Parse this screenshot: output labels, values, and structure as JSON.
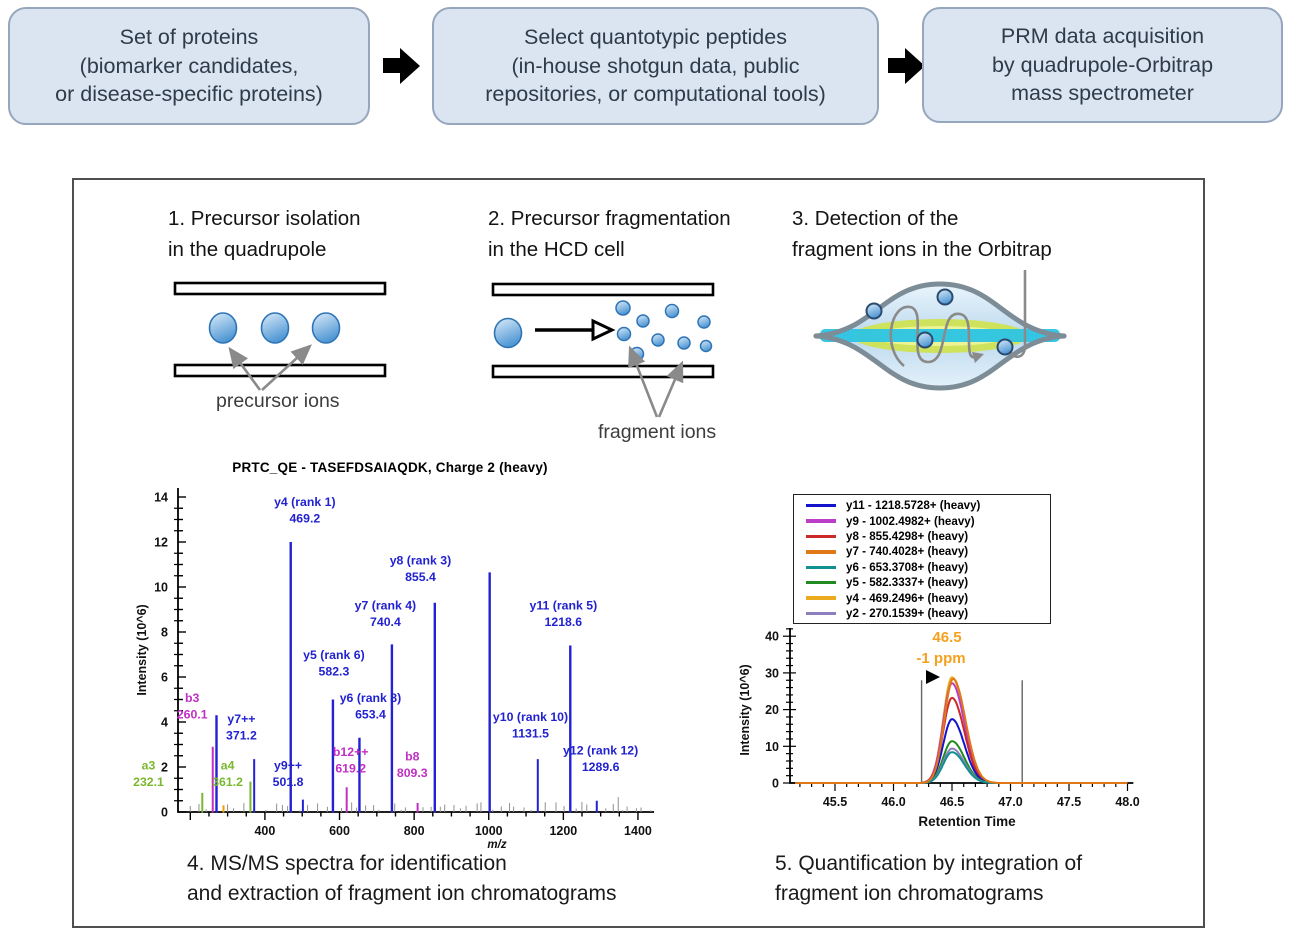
{
  "workflow": {
    "boxes": [
      {
        "lines": [
          "Set of proteins",
          "(biomarker candidates,",
          "or disease-specific proteins)"
        ]
      },
      {
        "lines": [
          "Select quantotypic peptides",
          "(in-house shotgun data, public",
          "repositories, or computational tools)"
        ]
      },
      {
        "lines": [
          "PRM data acquisition",
          "by quadrupole-Orbitrap",
          "mass spectrometer"
        ]
      }
    ],
    "box_fill": "#dbe5f1",
    "box_border": "#96a6bd",
    "arrow_color": "#000000"
  },
  "panel": {
    "steps": [
      {
        "lines": [
          "1. Precursor isolation",
          "in the quadrupole"
        ]
      },
      {
        "lines": [
          "2. Precursor fragmentation",
          "in the HCD cell"
        ]
      },
      {
        "lines": [
          "3. Detection of the",
          "fragment ions in the Orbitrap"
        ]
      }
    ],
    "labels": {
      "precursor": "precursor ions",
      "fragment": "fragment ions"
    },
    "captions": [
      {
        "lines": [
          "4. MS/MS spectra for identification",
          "and extraction of fragment ion chromatograms"
        ]
      },
      {
        "lines": [
          "5. Quantification by integration of",
          "fragment ion chromatograms"
        ]
      }
    ]
  },
  "chart_data": [
    {
      "type": "bar",
      "title": "PRTC_QE - TASEFDSAIAQDK, Charge 2 (heavy)",
      "xlabel": "m/z",
      "ylabel": "Intensity (10^6)",
      "xlim": [
        167,
        1443
      ],
      "ylim": [
        0,
        14
      ],
      "xticks": [
        400,
        600,
        800,
        1000,
        1200,
        1400
      ],
      "yticks": [
        0,
        2,
        4,
        6,
        8,
        10,
        12,
        14
      ],
      "grid": false,
      "colors": {
        "blue": "#2222d2",
        "magenta": "#c12fc4",
        "green": "#7cb82f",
        "orange": "#f0a000",
        "noise": "#909090"
      },
      "noise_seed": 42,
      "peaks": [
        {
          "mz": 232.1,
          "h": 0.85,
          "c": "green",
          "label": [
            "a3",
            "232.1"
          ],
          "lx": 88,
          "ly": 1.9
        },
        {
          "mz": 260.1,
          "h": 2.9,
          "c": "magenta",
          "label": [
            "b3",
            "260.1"
          ],
          "lx": 205,
          "ly": 4.9
        },
        {
          "mz": 270.2,
          "h": 4.3,
          "c": "blue"
        },
        {
          "mz": 289.0,
          "h": 0.3,
          "c": "orange"
        },
        {
          "mz": 361.2,
          "h": 1.35,
          "c": "green",
          "label": [
            "a4",
            "361.2"
          ],
          "lx": 300,
          "ly": 1.9
        },
        {
          "mz": 371.2,
          "h": 2.35,
          "c": "blue",
          "label": [
            "y7++",
            "371.2"
          ],
          "lx": 337,
          "ly": 3.95
        },
        {
          "mz": 469.2,
          "h": 12.0,
          "c": "blue",
          "label": [
            "y4 (rank 1)",
            "469.2"
          ],
          "lx": 507,
          "ly": 13.6
        },
        {
          "mz": 501.8,
          "h": 0.55,
          "c": "blue",
          "label": [
            "y9++",
            "501.8"
          ],
          "lx": 462,
          "ly": 1.9
        },
        {
          "mz": 582.3,
          "h": 5.0,
          "c": "blue",
          "label": [
            "y5 (rank 6)",
            "582.3"
          ],
          "lx": 585,
          "ly": 6.8
        },
        {
          "mz": 619.2,
          "h": 1.1,
          "c": "magenta",
          "label": [
            "b12++",
            "619.2"
          ],
          "lx": 630,
          "ly": 2.5
        },
        {
          "mz": 653.4,
          "h": 3.3,
          "c": "blue",
          "label": [
            "y6 (rank 8)",
            "653.4"
          ],
          "lx": 683,
          "ly": 4.9
        },
        {
          "mz": 740.4,
          "h": 7.45,
          "c": "blue",
          "label": [
            "y7 (rank 4)",
            "740.4"
          ],
          "lx": 723,
          "ly": 9.0
        },
        {
          "mz": 809.3,
          "h": 0.4,
          "c": "magenta",
          "label": [
            "b8",
            "809.3"
          ],
          "lx": 795,
          "ly": 2.3
        },
        {
          "mz": 855.4,
          "h": 9.3,
          "c": "blue",
          "label": [
            "y8 (rank 3)",
            "855.4"
          ],
          "lx": 817,
          "ly": 11.0
        },
        {
          "mz": 1002.5,
          "h": 10.65,
          "c": "blue"
        },
        {
          "mz": 1131.5,
          "h": 2.35,
          "c": "blue",
          "label": [
            "y10 (rank 10)",
            "1131.5"
          ],
          "lx": 1112,
          "ly": 4.05
        },
        {
          "mz": 1218.6,
          "h": 7.4,
          "c": "blue",
          "label": [
            "y11 (rank 5)",
            "1218.6"
          ],
          "lx": 1200,
          "ly": 9.0
        },
        {
          "mz": 1289.6,
          "h": 0.5,
          "c": "blue",
          "label": [
            "y12 (rank 12)",
            "1289.6"
          ],
          "lx": 1300,
          "ly": 2.55
        }
      ]
    },
    {
      "type": "line",
      "xlabel": "Retention Time",
      "ylabel": "Intensity (10^6)",
      "xlim": [
        45.15,
        48.05
      ],
      "ylim": [
        0,
        42
      ],
      "xticks": [
        "45.5",
        "46.0",
        "46.5",
        "47.0",
        "47.5",
        "48.0"
      ],
      "yticks": [
        0,
        10,
        20,
        30,
        40
      ],
      "grid": false,
      "legend_position": "top",
      "legend": [
        {
          "label": "y11 - 1218.5728+ (heavy)",
          "color": "#1414cc"
        },
        {
          "label": "y9 - 1002.4982+ (heavy)",
          "color": "#bb3ec8"
        },
        {
          "label": "y8 - 855.4298+ (heavy)",
          "color": "#cc2929"
        },
        {
          "label": "y7 - 740.4028+ (heavy)",
          "color": "#e07818"
        },
        {
          "label": "y6 - 653.3708+ (heavy)",
          "color": "#109090"
        },
        {
          "label": "y5 - 582.3337+ (heavy)",
          "color": "#218a21"
        },
        {
          "label": "y4 - 469.2496+ (heavy)",
          "color": "#ecaa1e"
        },
        {
          "label": "y2 - 270.1539+ (heavy)",
          "color": "#8d7fc0"
        }
      ],
      "series": [
        {
          "name": "y4",
          "color": "#ecaa1e",
          "apex_rt": 46.5,
          "peak_height": 28.8
        },
        {
          "name": "y9",
          "color": "#bb3ec8",
          "apex_rt": 46.5,
          "peak_height": 27.2
        },
        {
          "name": "y8",
          "color": "#cc2929",
          "apex_rt": 46.5,
          "peak_height": 23.2
        },
        {
          "name": "y11",
          "color": "#1414cc",
          "apex_rt": 46.5,
          "peak_height": 17.4
        },
        {
          "name": "y5",
          "color": "#218a21",
          "apex_rt": 46.5,
          "peak_height": 11.4
        },
        {
          "name": "y2",
          "color": "#8d7fc0",
          "apex_rt": 46.5,
          "peak_height": 9.4
        },
        {
          "name": "y6",
          "color": "#109090",
          "apex_rt": 46.5,
          "peak_height": 8.4
        },
        {
          "name": "y7",
          "color": "#e07818",
          "apex_rt": 46.51,
          "peak_height": 28.4
        }
      ],
      "peak_sigma_left": 0.075,
      "peak_sigma_right": 0.105,
      "integration_boundaries": [
        46.24,
        47.1
      ],
      "boundary_top": 28,
      "annotation": {
        "rt_text": "46.5",
        "ppm_text": "-1 ppm",
        "color": "#f5a11e"
      }
    }
  ]
}
